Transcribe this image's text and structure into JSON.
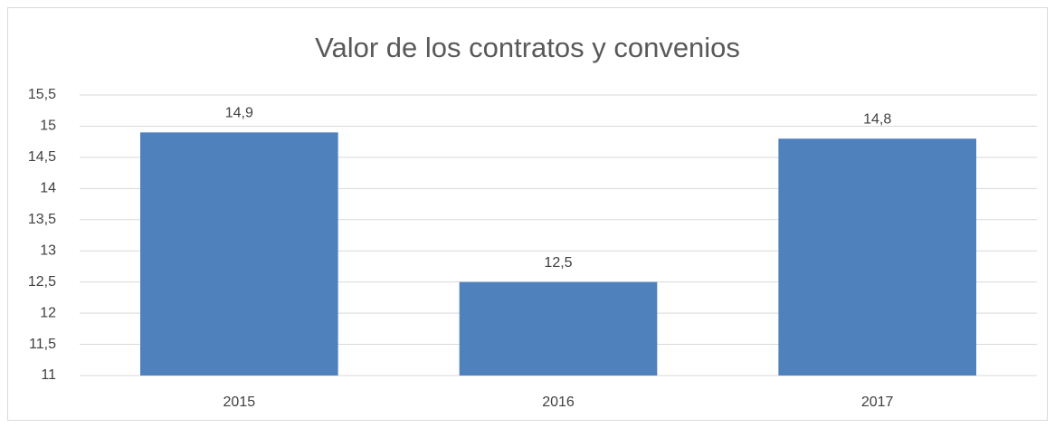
{
  "chart_data": {
    "type": "bar",
    "title": "Valor de los contratos y convenios",
    "categories": [
      "2015",
      "2016",
      "2017"
    ],
    "values": [
      14.9,
      12.5,
      14.8
    ],
    "value_labels": [
      "14,9",
      "12,5",
      "14,8"
    ],
    "color": "#4f81bd",
    "ylim": [
      11,
      15.5
    ],
    "yticks": [
      11,
      {
        "value": 11.5,
        "label": "11,5"
      },
      12,
      {
        "value": 12.5,
        "label": "12,5"
      },
      13,
      {
        "value": 13.5,
        "label": "13,5"
      },
      14,
      {
        "value": 14.5,
        "label": "14,5"
      },
      15,
      {
        "value": 15.5,
        "label": "15,5"
      }
    ],
    "grid": true
  }
}
